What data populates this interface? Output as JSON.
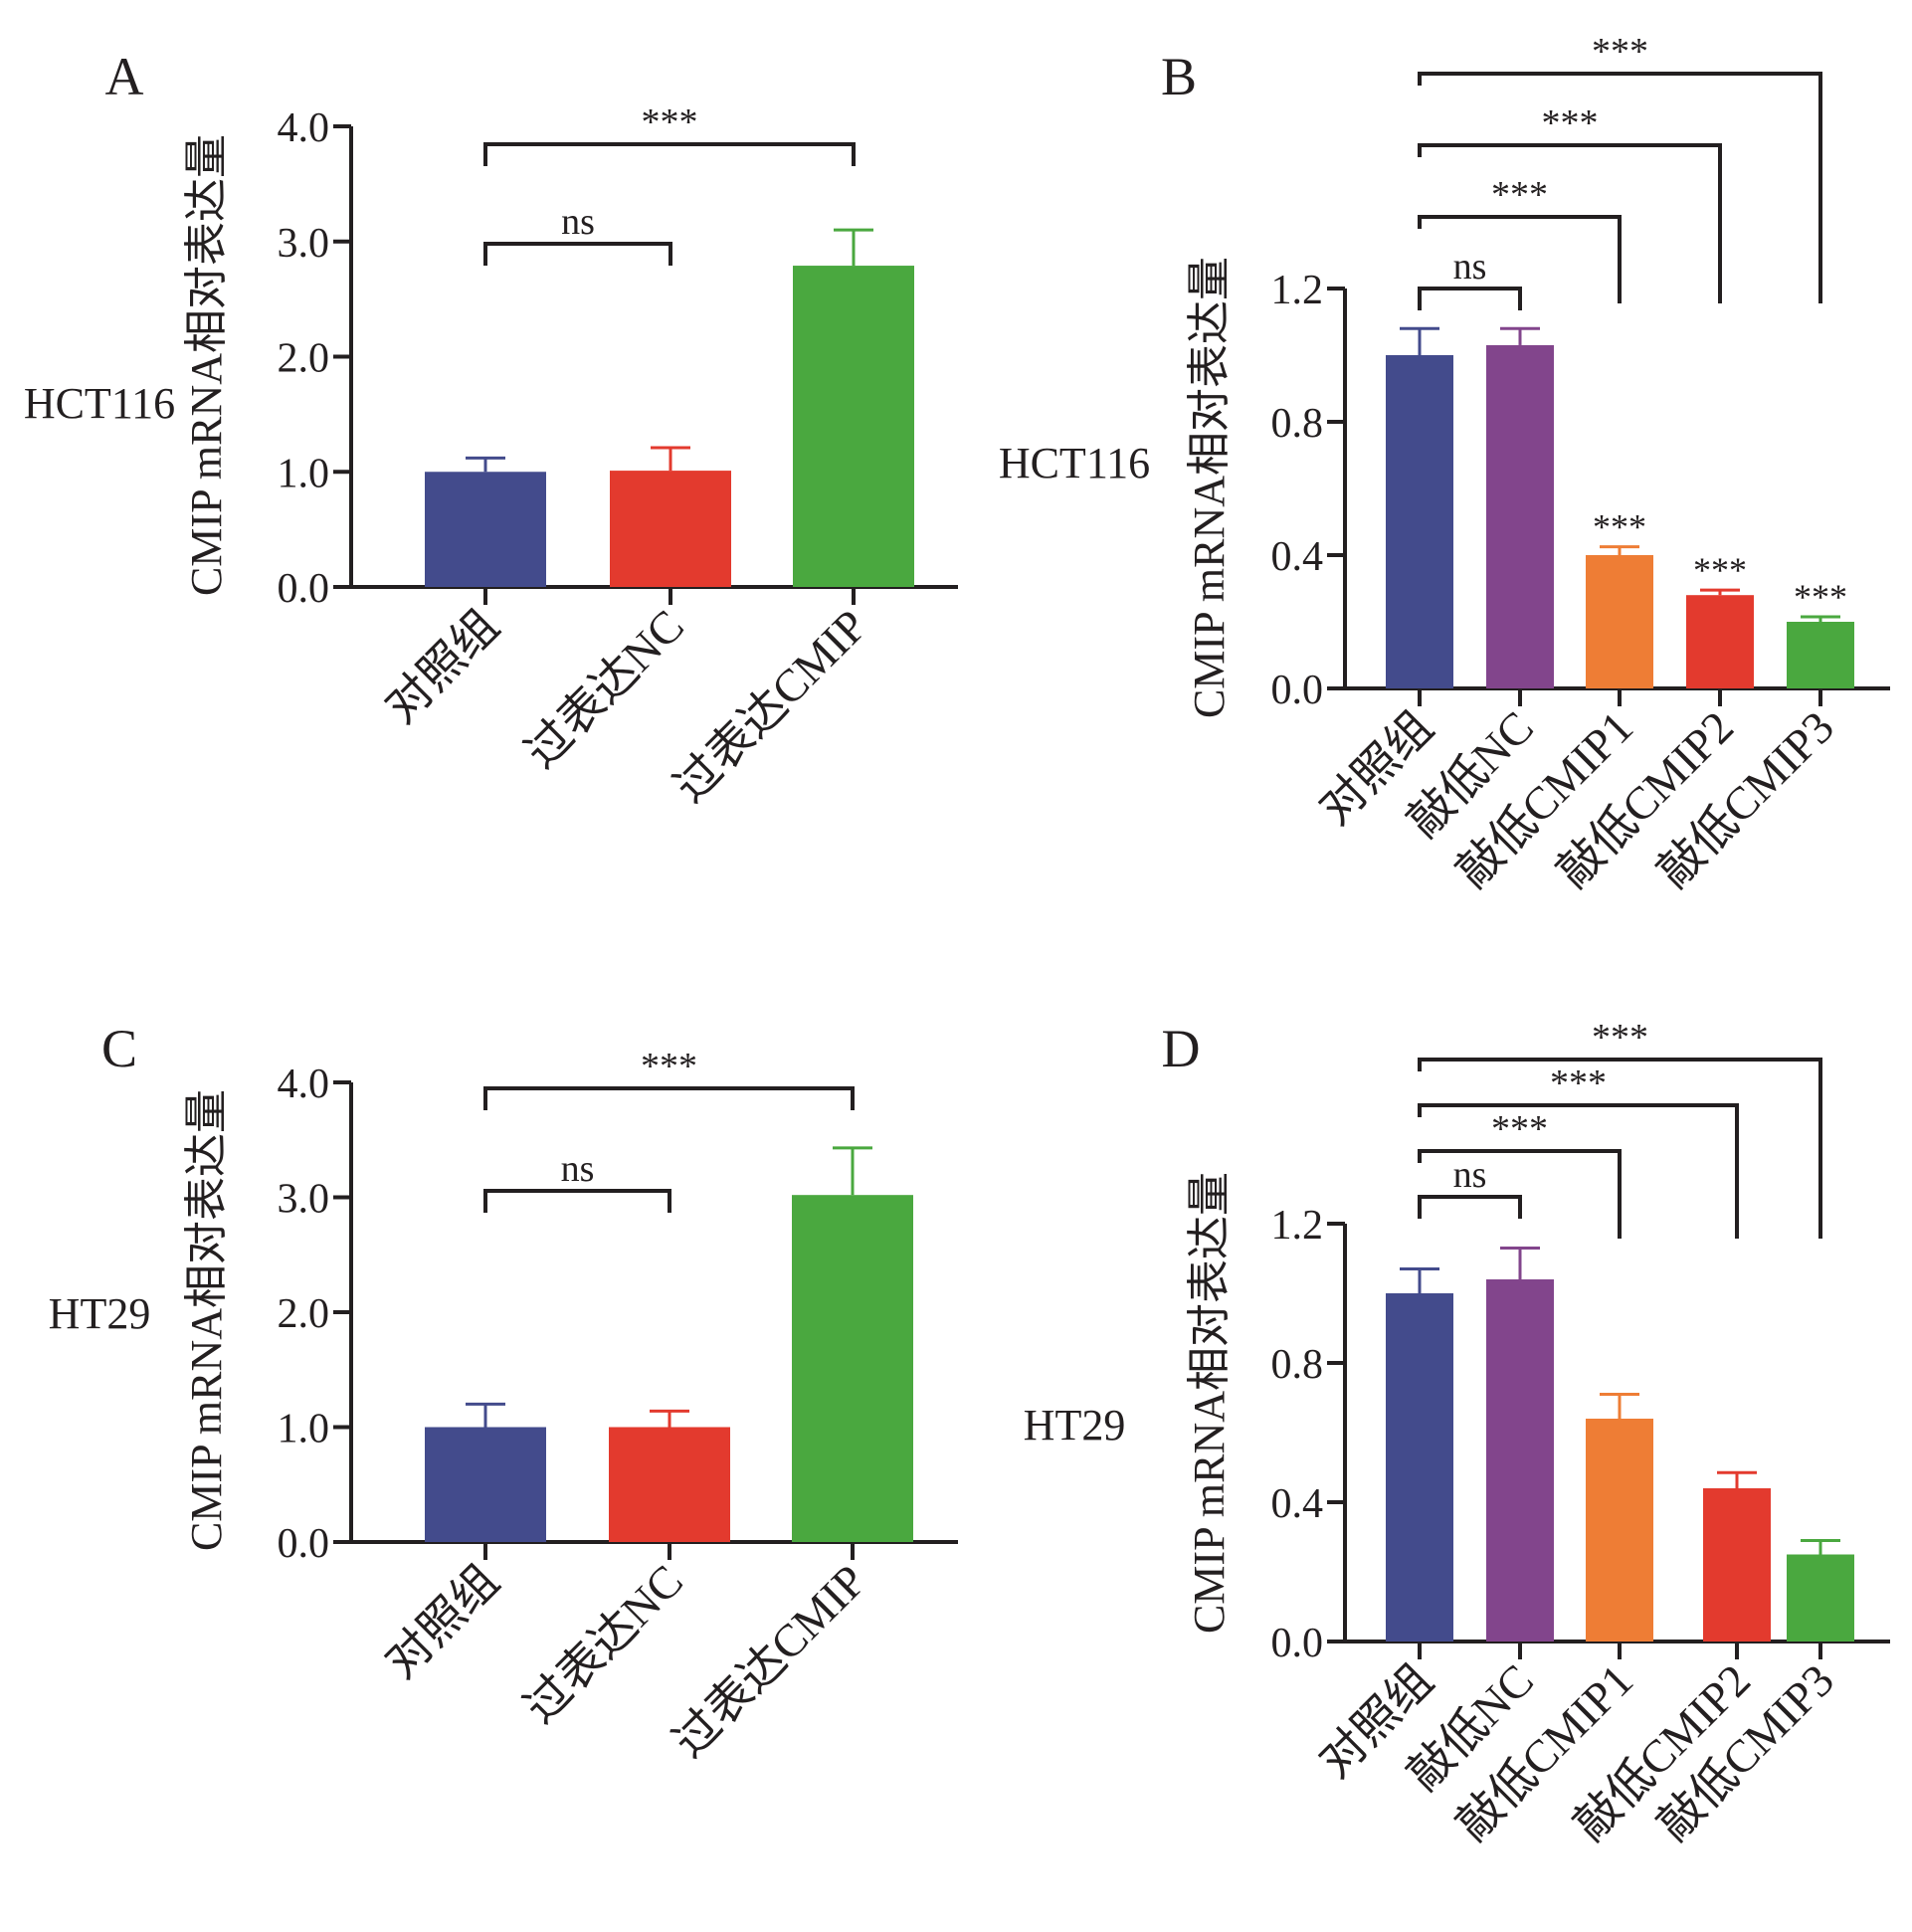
{
  "panels": [
    {
      "letter": "A",
      "cell_line": "HCT116",
      "ylabel": "CMIP mRNA相对表达量",
      "ylim": [
        0,
        4.0
      ],
      "ticks": [
        "0.0",
        "1.0",
        "2.0",
        "3.0",
        "4.0"
      ],
      "categories": [
        "对照组",
        "过表达NC",
        "过表达CMIP"
      ],
      "values": [
        1.0,
        1.01,
        2.79
      ],
      "errors": [
        0.12,
        0.2,
        0.31
      ],
      "colors": [
        "#434b8c",
        "#e33a2e",
        "#4aa83f"
      ],
      "bar_labels": [
        "",
        "",
        ""
      ],
      "brackets": [
        {
          "from": 0,
          "to": 1,
          "label": "ns"
        },
        {
          "from": 0,
          "to": 2,
          "label": "***"
        }
      ]
    },
    {
      "letter": "B",
      "cell_line": "HCT116",
      "ylabel": "CMIP mRNA相对表达量",
      "ylim": [
        0,
        1.2
      ],
      "ticks": [
        "0.0",
        "0.4",
        "0.8",
        "1.2"
      ],
      "categories": [
        "对照组",
        "敲低NC",
        "敲低CMIP1",
        "敲低CMIP2",
        "敲低CMIP3"
      ],
      "values": [
        1.0,
        1.03,
        0.4,
        0.28,
        0.2
      ],
      "errors": [
        0.08,
        0.05,
        0.025,
        0.015,
        0.015
      ],
      "colors": [
        "#434b8c",
        "#82458c",
        "#ee7d35",
        "#e33a2e",
        "#4aa83f"
      ],
      "bar_labels": [
        "",
        "",
        "***",
        "***",
        "***"
      ],
      "brackets": [
        {
          "from": 0,
          "to": 1,
          "label": "ns"
        },
        {
          "from": 0,
          "to": 2,
          "label": "***"
        },
        {
          "from": 0,
          "to": 3,
          "label": "***"
        },
        {
          "from": 0,
          "to": 4,
          "label": "***"
        }
      ]
    },
    {
      "letter": "C",
      "cell_line": "HT29",
      "ylabel": "CMIP mRNA相对表达量",
      "ylim": [
        0,
        4.0
      ],
      "ticks": [
        "0.0",
        "1.0",
        "2.0",
        "3.0",
        "4.0"
      ],
      "categories": [
        "对照组",
        "过表达NC",
        "过表达CMIP"
      ],
      "values": [
        1.0,
        1.0,
        3.02
      ],
      "errors": [
        0.2,
        0.14,
        0.41
      ],
      "colors": [
        "#434b8c",
        "#e33a2e",
        "#4aa83f"
      ],
      "bar_labels": [
        "",
        "",
        ""
      ],
      "brackets": [
        {
          "from": 0,
          "to": 1,
          "label": "ns"
        },
        {
          "from": 0,
          "to": 2,
          "label": "***"
        }
      ]
    },
    {
      "letter": "D",
      "cell_line": "HT29",
      "ylabel": "CMIP mRNA相对表达量",
      "ylim": [
        0,
        1.2
      ],
      "ticks": [
        "0.0",
        "0.4",
        "0.8",
        "1.2"
      ],
      "categories": [
        "对照组",
        "敲低NC",
        "敲低CMIP1",
        "敲低CMIP2",
        "敲低CMIP3"
      ],
      "values": [
        1.0,
        1.04,
        0.64,
        0.44,
        0.25
      ],
      "errors": [
        0.07,
        0.09,
        0.07,
        0.045,
        0.04
      ],
      "colors": [
        "#434b8c",
        "#82458c",
        "#ee7d35",
        "#e33a2e",
        "#4aa83f"
      ],
      "bar_labels": [
        "",
        "",
        "",
        "",
        ""
      ],
      "brackets": [
        {
          "from": 0,
          "to": 1,
          "label": "ns"
        },
        {
          "from": 0,
          "to": 2,
          "label": "***"
        },
        {
          "from": 0,
          "to": 3,
          "label": "***"
        },
        {
          "from": 0,
          "to": 4,
          "label": "***"
        }
      ]
    }
  ],
  "chart_data": [
    {
      "type": "bar",
      "title": "",
      "panel": "A",
      "cell_line": "HCT116",
      "categories": [
        "对照组",
        "过表达NC",
        "过表达CMIP"
      ],
      "values": [
        1.0,
        1.01,
        2.79
      ],
      "errors": [
        0.12,
        0.2,
        0.31
      ],
      "xlabel": "",
      "ylabel": "CMIP mRNA相对表达量",
      "ylim": [
        0,
        4.0
      ],
      "grid": false,
      "significance": [
        {
          "groups": [
            "对照组",
            "过表达NC"
          ],
          "label": "ns"
        },
        {
          "groups": [
            "对照组",
            "过表达CMIP"
          ],
          "label": "***"
        }
      ]
    },
    {
      "type": "bar",
      "title": "",
      "panel": "B",
      "cell_line": "HCT116",
      "categories": [
        "对照组",
        "敲低NC",
        "敲低CMIP1",
        "敲低CMIP2",
        "敲低CMIP3"
      ],
      "values": [
        1.0,
        1.03,
        0.4,
        0.28,
        0.2
      ],
      "errors": [
        0.08,
        0.05,
        0.025,
        0.015,
        0.015
      ],
      "xlabel": "",
      "ylabel": "CMIP mRNA相对表达量",
      "ylim": [
        0,
        1.2
      ],
      "grid": false,
      "significance": [
        {
          "groups": [
            "对照组",
            "敲低NC"
          ],
          "label": "ns"
        },
        {
          "groups": [
            "对照组",
            "敲低CMIP1"
          ],
          "label": "***"
        },
        {
          "groups": [
            "对照组",
            "敲低CMIP2"
          ],
          "label": "***"
        },
        {
          "groups": [
            "对照组",
            "敲低CMIP3"
          ],
          "label": "***"
        }
      ]
    },
    {
      "type": "bar",
      "title": "",
      "panel": "C",
      "cell_line": "HT29",
      "categories": [
        "对照组",
        "过表达NC",
        "过表达CMIP"
      ],
      "values": [
        1.0,
        1.0,
        3.02
      ],
      "errors": [
        0.2,
        0.14,
        0.41
      ],
      "xlabel": "",
      "ylabel": "CMIP mRNA相对表达量",
      "ylim": [
        0,
        4.0
      ],
      "grid": false,
      "significance": [
        {
          "groups": [
            "对照组",
            "过表达NC"
          ],
          "label": "ns"
        },
        {
          "groups": [
            "对照组",
            "过表达CMIP"
          ],
          "label": "***"
        }
      ]
    },
    {
      "type": "bar",
      "title": "",
      "panel": "D",
      "cell_line": "HT29",
      "categories": [
        "对照组",
        "敲低NC",
        "敲低CMIP1",
        "敲低CMIP2",
        "敲低CMIP3"
      ],
      "values": [
        1.0,
        1.04,
        0.64,
        0.44,
        0.25
      ],
      "errors": [
        0.07,
        0.09,
        0.07,
        0.045,
        0.04
      ],
      "xlabel": "",
      "ylabel": "CMIP mRNA相对表达量",
      "ylim": [
        0,
        1.2
      ],
      "grid": false,
      "significance": [
        {
          "groups": [
            "对照组",
            "敲低NC"
          ],
          "label": "ns"
        },
        {
          "groups": [
            "对照组",
            "敲低CMIP1"
          ],
          "label": "***"
        },
        {
          "groups": [
            "对照组",
            "敲低CMIP2"
          ],
          "label": "***"
        },
        {
          "groups": [
            "对照组",
            "敲低CMIP3"
          ],
          "label": "***"
        }
      ]
    }
  ]
}
